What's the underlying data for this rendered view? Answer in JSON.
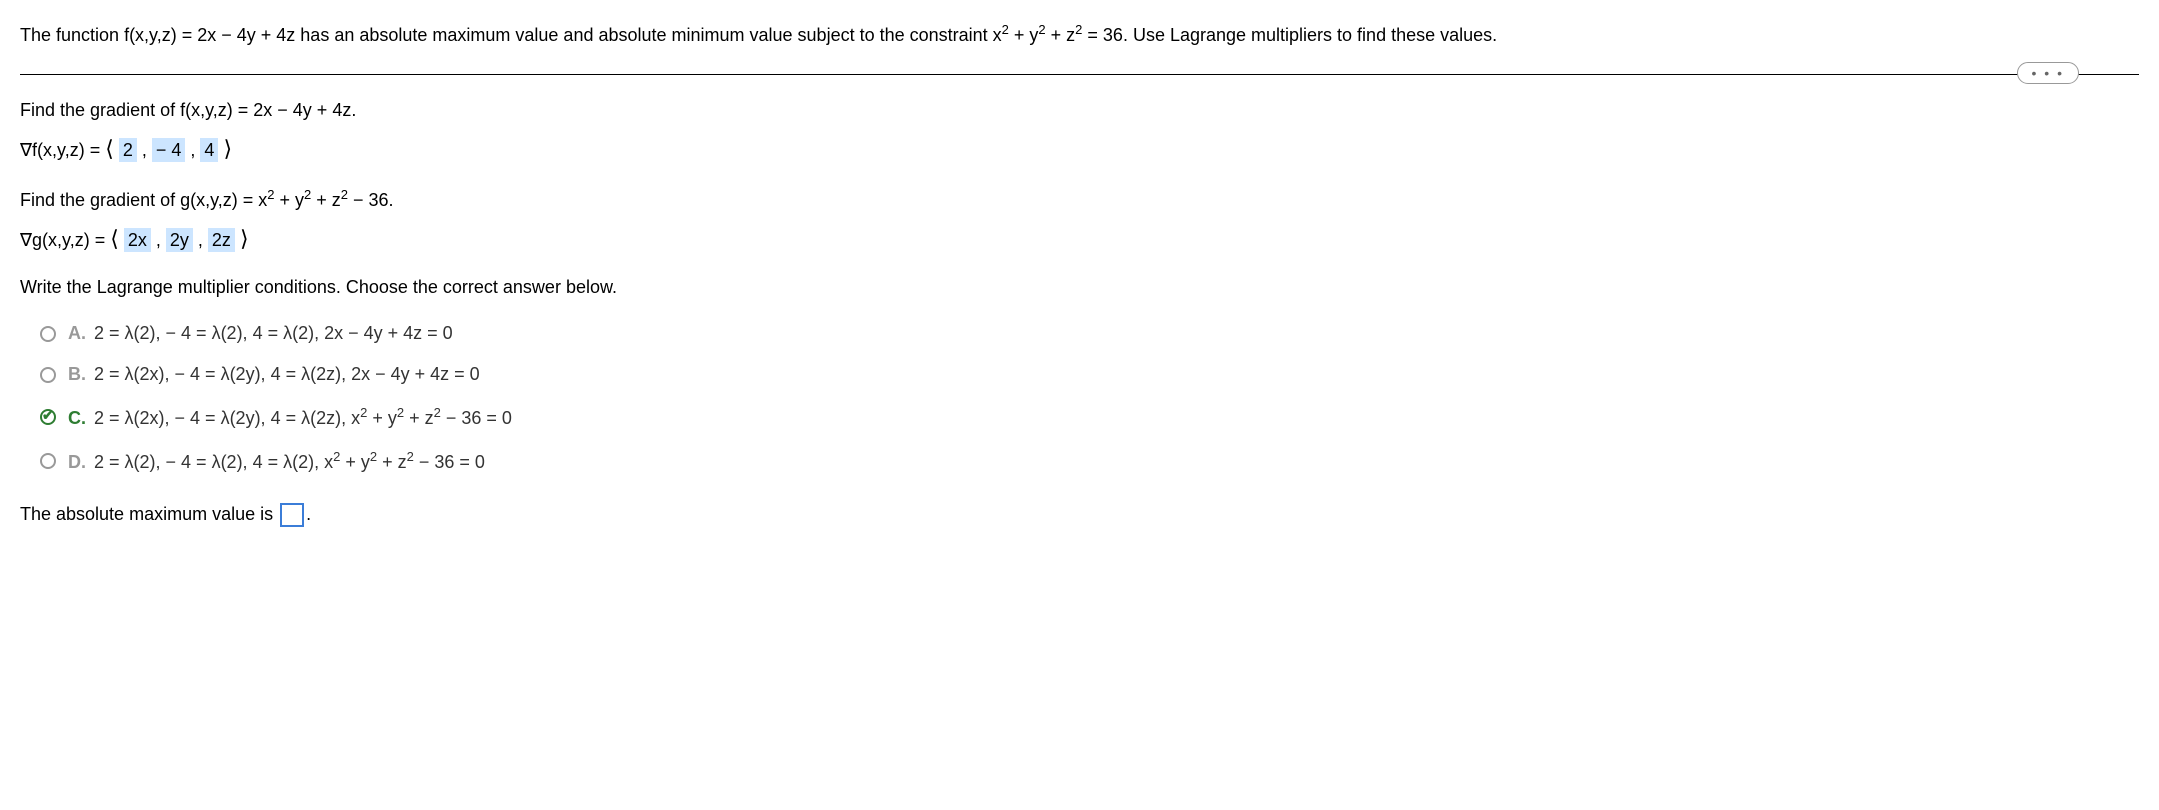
{
  "problem": {
    "statement": "The function f(x,y,z) = 2x − 4y + 4z has an absolute maximum value and absolute minimum value subject to the constraint x² + y² + z² = 36. Use Lagrange multipliers to find these values."
  },
  "ellipsis": "• • •",
  "gradient_f": {
    "prompt": "Find the gradient of  f(x,y,z) = 2x − 4y + 4z.",
    "label": "∇f(x,y,z) = ",
    "values": [
      "2",
      "− 4",
      "4"
    ]
  },
  "gradient_g": {
    "prompt": "Find the gradient of g(x,y,z) = x² + y² + z² − 36.",
    "label": "∇g(x,y,z) = ",
    "values": [
      "2x",
      "2y",
      "2z"
    ]
  },
  "lagrange_prompt": "Write the Lagrange multiplier conditions. Choose the correct answer below.",
  "choices": [
    {
      "label": "A.",
      "text": "2 = λ(2),  − 4 = λ(2), 4 = λ(2), 2x − 4y + 4z = 0"
    },
    {
      "label": "B.",
      "text": "2 = λ(2x),  − 4 = λ(2y), 4 = λ(2z), 2x − 4y + 4z = 0"
    },
    {
      "label": "C.",
      "text": "2 = λ(2x),  − 4 = λ(2y), 4 = λ(2z), x² + y² + z² − 36 = 0"
    },
    {
      "label": "D.",
      "text": "2 = λ(2),  − 4 = λ(2), 4 = λ(2), x² + y² + z² − 36 = 0"
    }
  ],
  "selected_choice": "C.",
  "final_answer": {
    "prefix": "The absolute maximum value is ",
    "suffix": "."
  },
  "colors": {
    "highlight_bg": "#cce5ff",
    "selected_green": "#2e7d32",
    "input_border": "#3b7dd8"
  }
}
